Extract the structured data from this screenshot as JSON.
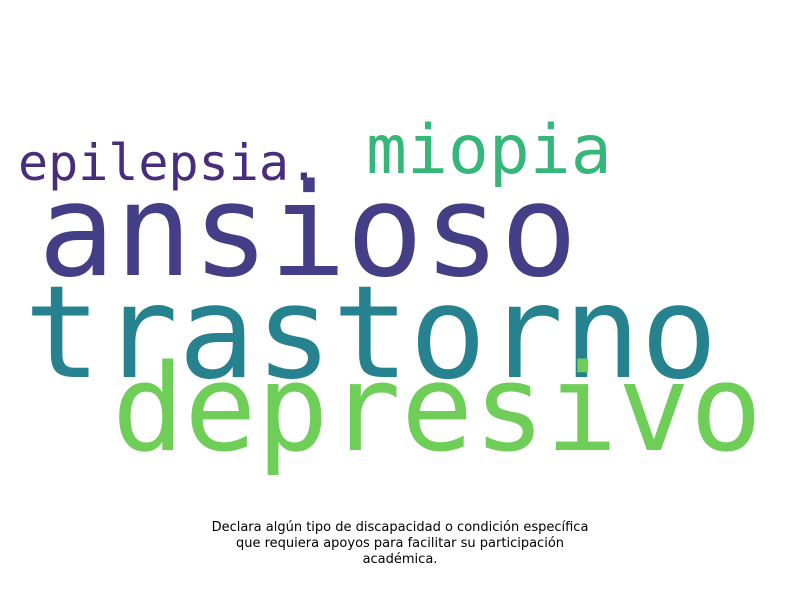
{
  "words": [
    {
      "text": "epilepsia.",
      "color": "#472d7b"
    },
    {
      "text": "miopia",
      "color": "#35b779"
    },
    {
      "text": "ansioso",
      "color": "#433e85"
    },
    {
      "text": "trastorno",
      "color": "#26828e"
    },
    {
      "text": "depresivo",
      "color": "#6ece58"
    }
  ],
  "caption": {
    "lines": [
      "Declara algún tipo de discapacidad o condición específica",
      "que requiera apoyos para facilitar su participación",
      "académica."
    ]
  }
}
